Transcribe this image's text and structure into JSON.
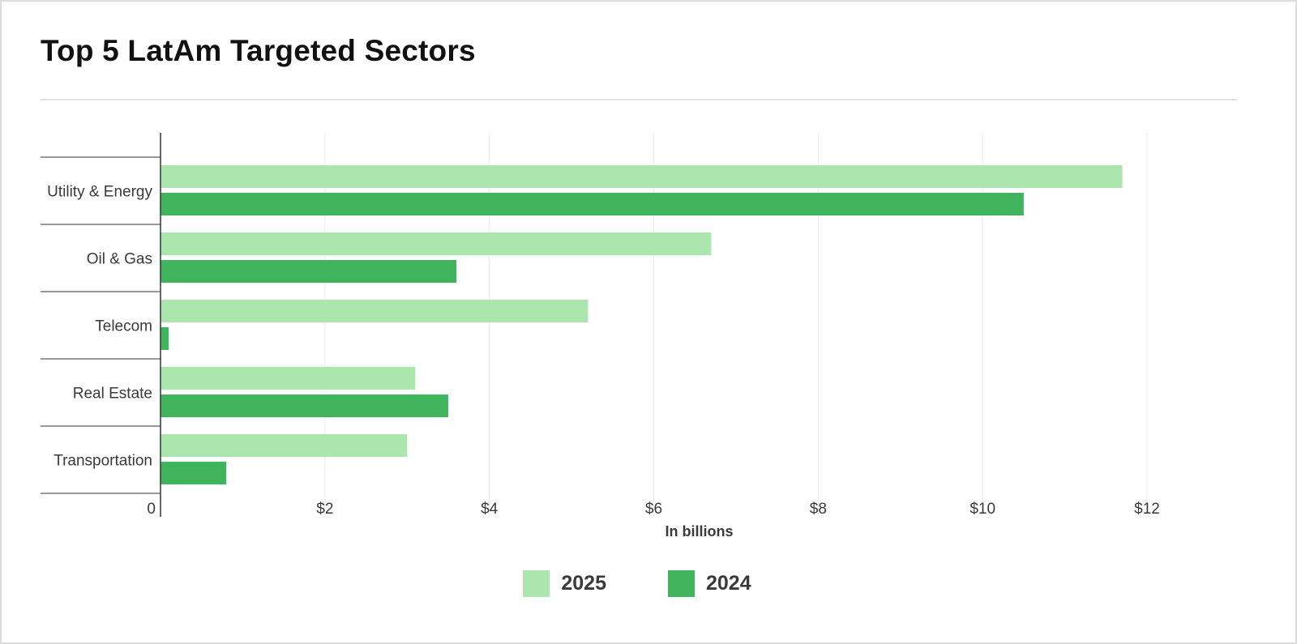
{
  "title": "Top 5 LatAm Targeted Sectors",
  "colors": {
    "series_2025": "#abe6ae",
    "series_2024": "#3fb45c",
    "gridline": "#ebebeb",
    "axis": "#333333",
    "text": "#3a3a3a"
  },
  "chart_data": {
    "type": "bar",
    "orientation": "horizontal",
    "title": "Top 5 LatAm Targeted Sectors",
    "xlabel": "In billions",
    "ylabel": "",
    "categories": [
      "Utility & Energy",
      "Oil & Gas",
      "Telecom",
      "Real Estate",
      "Transportation"
    ],
    "series": [
      {
        "name": "2025",
        "values": [
          11.7,
          6.7,
          5.2,
          3.1,
          3.0
        ]
      },
      {
        "name": "2024",
        "values": [
          10.5,
          3.6,
          0.1,
          3.5,
          0.8
        ]
      }
    ],
    "xlim": [
      0,
      12
    ],
    "xticks": [
      0,
      2,
      4,
      6,
      8,
      10,
      12
    ],
    "xtick_labels": [
      "0",
      "$2",
      "$4",
      "$6",
      "$8",
      "$10",
      "$12"
    ],
    "grid": true,
    "legend_position": "bottom-center"
  }
}
